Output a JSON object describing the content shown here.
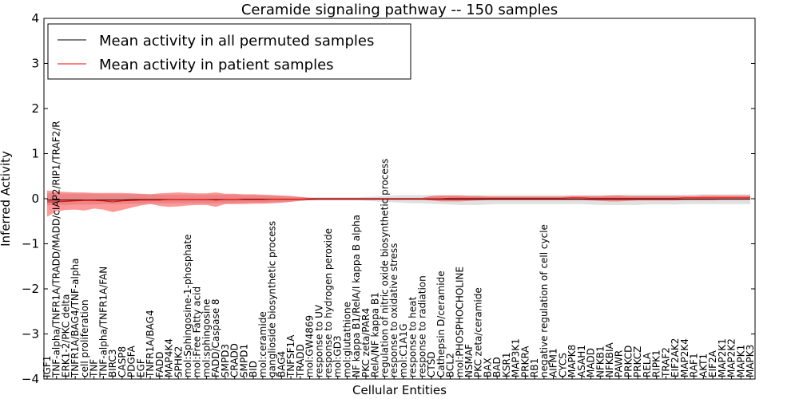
{
  "chart_data": {
    "type": "line",
    "title": "Ceramide signaling pathway -- 150 samples",
    "xlabel": "Cellular Entities",
    "ylabel": "Inferred Activity",
    "ylim": [
      -4,
      4
    ],
    "yticks": [
      "4",
      "3",
      "2",
      "1",
      "0",
      "−1",
      "−2",
      "−3",
      "−4"
    ],
    "legend_position": "top-left",
    "categories": [
      "IGF1",
      "TNF-alpha/TNFR1A/TRADD/MADD/cIAP2/RIP1/TRAF2/R",
      "ERK1-2/PKC delta",
      "TNFR1A/BAG4/TNF-alpha",
      "cell proliferation",
      "TNF",
      "TNF-alpha/TNFR1A/FAN",
      "BIRC3",
      "CASP8",
      "PDGFA",
      "EGF",
      "TNFR1A/BAG4",
      "FADD",
      "MAP4K4",
      "SPHK2",
      "mol:Sphingosine-1-phosphate",
      "mol:Free Fatty acid",
      "mol:sphingosine",
      "FADD/Caspase 8",
      "SMPD3",
      "CRADD",
      "SMPD1",
      "BID",
      "mol:ceramide",
      "ganglioside biosynthetic process",
      "BAG4",
      "TNFSF1A",
      "TRADD",
      "mol:GW4869",
      "response to UV",
      "response to hydrogen peroxide",
      "mol:GD3",
      "mol:glutathione",
      "NF kappa B1/RelA/I kappa B alpha",
      "PKC zeta/PAR4",
      "RelA/NF kappa B1",
      "regulation of nitric oxide biosynthetic process",
      "response to oxidative stress",
      "mol:C1A1G",
      "response to  heat",
      "response to radiation",
      "CTSD",
      "Cathepsin D/ceramide",
      "BCL2",
      "mol:PHOSPHOCHOLINE",
      "NSMAF",
      "PKC zeta/ceramide",
      "BAX",
      "BAD",
      "KSR1",
      "MAP3K1",
      "PRKRA",
      "RB1",
      "negative regulation of cell cycle",
      "AIFM1",
      "CYCS",
      "MAPK8",
      "ASAH1",
      "MADD",
      "NFKB1",
      "NFKBIA",
      "PAWR",
      "PRKCD",
      "PRKCZ",
      "RELA",
      "RIPK1",
      "TRAF2",
      "EIF2AK2",
      "MAP2K4",
      "RAF1",
      "AKT1",
      "EIF2A",
      "MAP2K1",
      "MAP2K2",
      "MAPK1",
      "MAPK3"
    ],
    "series": [
      {
        "name": "Mean activity in all permuted samples",
        "color": "#000000",
        "values": [
          -0.03,
          -0.03,
          -0.03,
          -0.03,
          -0.03,
          -0.03,
          -0.03,
          -0.03,
          -0.03,
          -0.02,
          -0.02,
          -0.02,
          -0.02,
          -0.02,
          -0.02,
          -0.02,
          -0.02,
          -0.02,
          -0.02,
          -0.02,
          -0.02,
          -0.01,
          -0.01,
          -0.01,
          -0.01,
          -0.01,
          -0.01,
          -0.01,
          -0.01,
          -0.01,
          -0.01,
          -0.01,
          -0.01,
          -0.01,
          -0.01,
          -0.01,
          -0.01,
          -0.01,
          -0.01,
          -0.01,
          -0.01,
          -0.01,
          -0.01,
          -0.01,
          -0.01,
          -0.01,
          -0.01,
          -0.01,
          -0.01,
          -0.01,
          -0.01,
          -0.01,
          -0.01,
          -0.01,
          -0.01,
          -0.01,
          -0.01,
          -0.01,
          -0.01,
          -0.01,
          -0.01,
          -0.01,
          -0.01,
          -0.01,
          -0.01,
          -0.01,
          -0.01,
          -0.01,
          -0.01,
          -0.01,
          -0.01,
          -0.01,
          -0.01,
          -0.01,
          -0.01,
          -0.01
        ],
        "band_low": [
          -0.15,
          -0.14,
          -0.14,
          -0.13,
          -0.13,
          -0.13,
          -0.12,
          -0.12,
          -0.12,
          -0.11,
          -0.11,
          -0.1,
          -0.1,
          -0.1,
          -0.1,
          -0.1,
          -0.1,
          -0.1,
          -0.1,
          -0.1,
          -0.1,
          -0.09,
          -0.09,
          -0.09,
          -0.08,
          -0.07,
          -0.06,
          -0.05,
          -0.04,
          -0.04,
          -0.04,
          -0.04,
          -0.04,
          -0.04,
          -0.05,
          -0.06,
          -0.07,
          -0.08,
          -0.09,
          -0.1,
          -0.1,
          -0.11,
          -0.12,
          -0.13,
          -0.14,
          -0.14,
          -0.14,
          -0.13,
          -0.12,
          -0.12,
          -0.12,
          -0.12,
          -0.12,
          -0.12,
          -0.12,
          -0.12,
          -0.12,
          -0.12,
          -0.13,
          -0.14,
          -0.14,
          -0.14,
          -0.14,
          -0.14,
          -0.13,
          -0.13,
          -0.13,
          -0.13,
          -0.12,
          -0.12,
          -0.12,
          -0.12,
          -0.12,
          -0.12,
          -0.12,
          -0.12
        ],
        "band_high": [
          0.12,
          0.12,
          0.11,
          0.11,
          0.11,
          0.11,
          0.1,
          0.1,
          0.1,
          0.1,
          0.1,
          0.1,
          0.09,
          0.09,
          0.09,
          0.09,
          0.09,
          0.09,
          0.09,
          0.09,
          0.09,
          0.08,
          0.08,
          0.07,
          0.07,
          0.06,
          0.05,
          0.04,
          0.03,
          0.03,
          0.03,
          0.03,
          0.03,
          0.03,
          0.04,
          0.05,
          0.06,
          0.07,
          0.08,
          0.08,
          0.08,
          0.08,
          0.08,
          0.08,
          0.08,
          0.08,
          0.08,
          0.08,
          0.08,
          0.08,
          0.08,
          0.08,
          0.08,
          0.08,
          0.08,
          0.08,
          0.08,
          0.08,
          0.08,
          0.08,
          0.08,
          0.09,
          0.09,
          0.09,
          0.09,
          0.09,
          0.09,
          0.09,
          0.09,
          0.09,
          0.1,
          0.1,
          0.1,
          0.1,
          0.1,
          0.1
        ]
      },
      {
        "name": "Mean activity in patient samples",
        "color": "#ff0000",
        "values": [
          -0.07,
          -0.07,
          -0.06,
          -0.05,
          -0.04,
          -0.04,
          -0.05,
          -0.07,
          -0.05,
          -0.04,
          -0.03,
          -0.03,
          -0.03,
          -0.02,
          -0.02,
          -0.02,
          -0.02,
          -0.02,
          -0.03,
          -0.02,
          -0.02,
          -0.02,
          -0.02,
          -0.02,
          -0.01,
          -0.01,
          -0.01,
          -0.01,
          0.0,
          0.0,
          0.0,
          0.0,
          0.0,
          0.0,
          0.0,
          0.0,
          0.0,
          0.0,
          0.0,
          0.0,
          0.0,
          0.0,
          0.0,
          0.01,
          0.01,
          0.01,
          0.01,
          0.01,
          0.01,
          0.01,
          0.01,
          0.01,
          0.01,
          0.01,
          0.01,
          0.01,
          0.02,
          0.02,
          0.01,
          0.01,
          0.01,
          0.01,
          0.01,
          0.01,
          0.01,
          0.01,
          0.01,
          0.01,
          0.02,
          0.02,
          0.02,
          0.02,
          0.02,
          0.02,
          0.02,
          0.02
        ],
        "band_low": [
          -0.4,
          -0.28,
          -0.25,
          -0.24,
          -0.26,
          -0.22,
          -0.24,
          -0.3,
          -0.25,
          -0.2,
          -0.15,
          -0.12,
          -0.16,
          -0.18,
          -0.17,
          -0.15,
          -0.14,
          -0.14,
          -0.18,
          -0.12,
          -0.12,
          -0.12,
          -0.11,
          -0.11,
          -0.1,
          -0.09,
          -0.07,
          -0.05,
          -0.03,
          -0.02,
          -0.02,
          -0.02,
          -0.02,
          -0.02,
          -0.02,
          -0.02,
          -0.02,
          -0.02,
          -0.02,
          -0.02,
          -0.02,
          -0.04,
          -0.06,
          -0.06,
          -0.06,
          -0.05,
          -0.04,
          -0.03,
          -0.03,
          -0.03,
          -0.03,
          -0.03,
          -0.03,
          -0.03,
          -0.03,
          -0.03,
          -0.03,
          -0.03,
          -0.04,
          -0.05,
          -0.06,
          -0.06,
          -0.05,
          -0.04,
          -0.04,
          -0.04,
          -0.04,
          -0.04,
          -0.03,
          -0.03,
          -0.03,
          -0.03,
          -0.02,
          -0.02,
          -0.02,
          -0.02
        ],
        "band_high": [
          0.18,
          0.16,
          0.15,
          0.14,
          0.14,
          0.13,
          0.13,
          0.13,
          0.13,
          0.12,
          0.11,
          0.1,
          0.12,
          0.13,
          0.14,
          0.13,
          0.12,
          0.12,
          0.14,
          0.11,
          0.11,
          0.1,
          0.1,
          0.09,
          0.08,
          0.07,
          0.06,
          0.04,
          0.02,
          0.02,
          0.02,
          0.02,
          0.02,
          0.02,
          0.02,
          0.02,
          0.02,
          0.02,
          0.02,
          0.02,
          0.02,
          0.06,
          0.07,
          0.07,
          0.07,
          0.06,
          0.06,
          0.05,
          0.05,
          0.05,
          0.05,
          0.05,
          0.05,
          0.05,
          0.05,
          0.05,
          0.06,
          0.06,
          0.06,
          0.06,
          0.07,
          0.07,
          0.06,
          0.06,
          0.06,
          0.06,
          0.06,
          0.06,
          0.06,
          0.06,
          0.07,
          0.07,
          0.07,
          0.07,
          0.07,
          0.07
        ]
      }
    ]
  }
}
